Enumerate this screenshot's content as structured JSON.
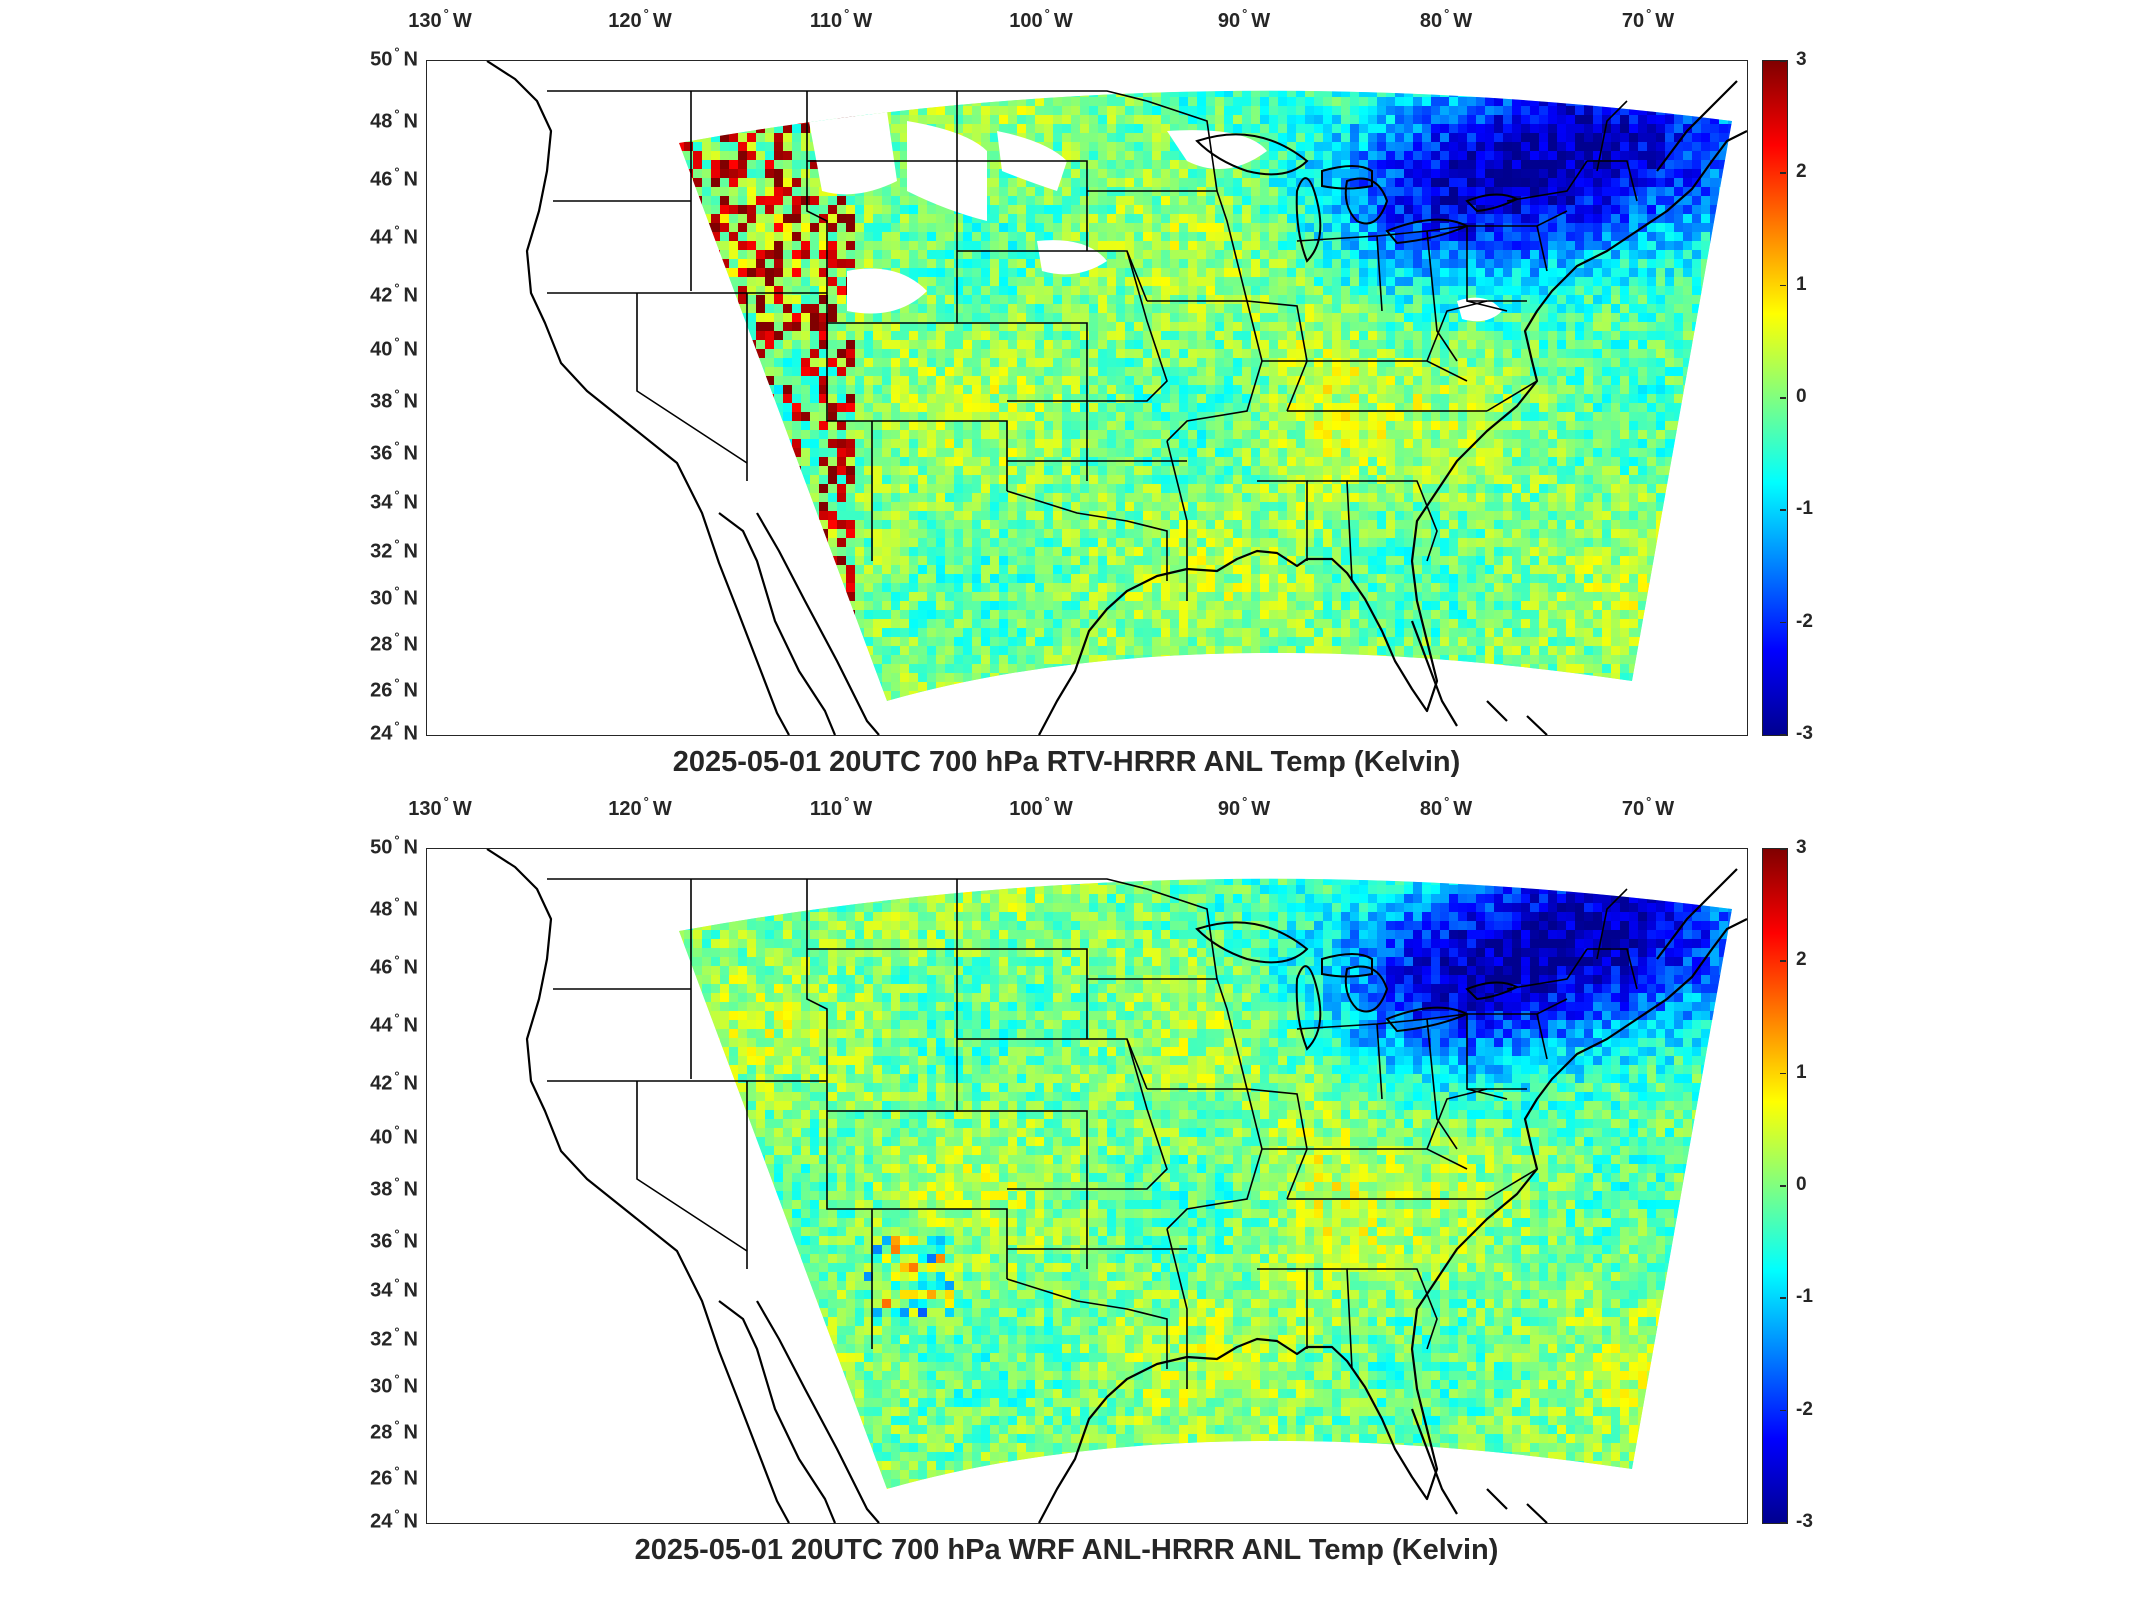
{
  "panels": [
    {
      "title": "2025-05-01 20UTC 700 hPa RTV-HRRR ANL Temp (Kelvin)",
      "field": "rtv"
    },
    {
      "title": "2025-05-01 20UTC 700 hPa WRF ANL-HRRR ANL Temp (Kelvin)",
      "field": "wrf"
    }
  ],
  "longitude_labels": [
    "130",
    "120",
    "110",
    "100",
    "90",
    "80",
    "70"
  ],
  "longitude_hemisphere": "W",
  "latitude_labels": [
    "50",
    "48",
    "46",
    "44",
    "42",
    "40",
    "38",
    "36",
    "34",
    "32",
    "30",
    "28",
    "26",
    "24"
  ],
  "latitude_hemisphere": "N",
  "degree_symbol": "°",
  "colorbar": {
    "ticks": [
      "3",
      "2",
      "1",
      "0",
      "-1",
      "-2",
      "-3"
    ],
    "range": [
      -3,
      3
    ],
    "colormap": "jet",
    "colors": [
      "#00008f",
      "#0000ff",
      "#0080ff",
      "#00ffff",
      "#80ff80",
      "#ffff00",
      "#ff8000",
      "#ff0000",
      "#800000"
    ]
  },
  "map_style": {
    "land_background": "#ffffff",
    "boundary_color": "#000000",
    "field_base_color": "#5ee6c8"
  }
}
